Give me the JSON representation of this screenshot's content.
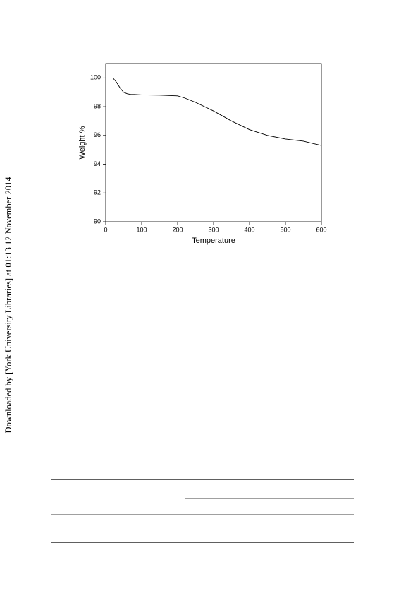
{
  "side_note": "Downloaded by [York University Libraries] at 01:13 12 November 2014",
  "chart_data": {
    "type": "line",
    "x_label": "Temperature",
    "y_label": "Weight %",
    "x": [
      20,
      30,
      40,
      50,
      60,
      70,
      80,
      100,
      150,
      200,
      220,
      250,
      300,
      350,
      400,
      450,
      500,
      550,
      575,
      600
    ],
    "series": [
      {
        "color": "#000000",
        "values": [
          100,
          99.7,
          99.3,
          99.0,
          98.9,
          98.85,
          98.85,
          98.82,
          98.8,
          98.75,
          98.6,
          98.3,
          97.7,
          97.0,
          96.4,
          96.0,
          95.75,
          95.6,
          95.45,
          95.3
        ]
      }
    ],
    "xlim": [
      0,
      600
    ],
    "ylim": [
      90,
      101
    ],
    "xticks": [
      0,
      100,
      200,
      300,
      400,
      500,
      600
    ],
    "yticks": [
      90,
      92,
      94,
      96,
      98,
      100
    ]
  }
}
